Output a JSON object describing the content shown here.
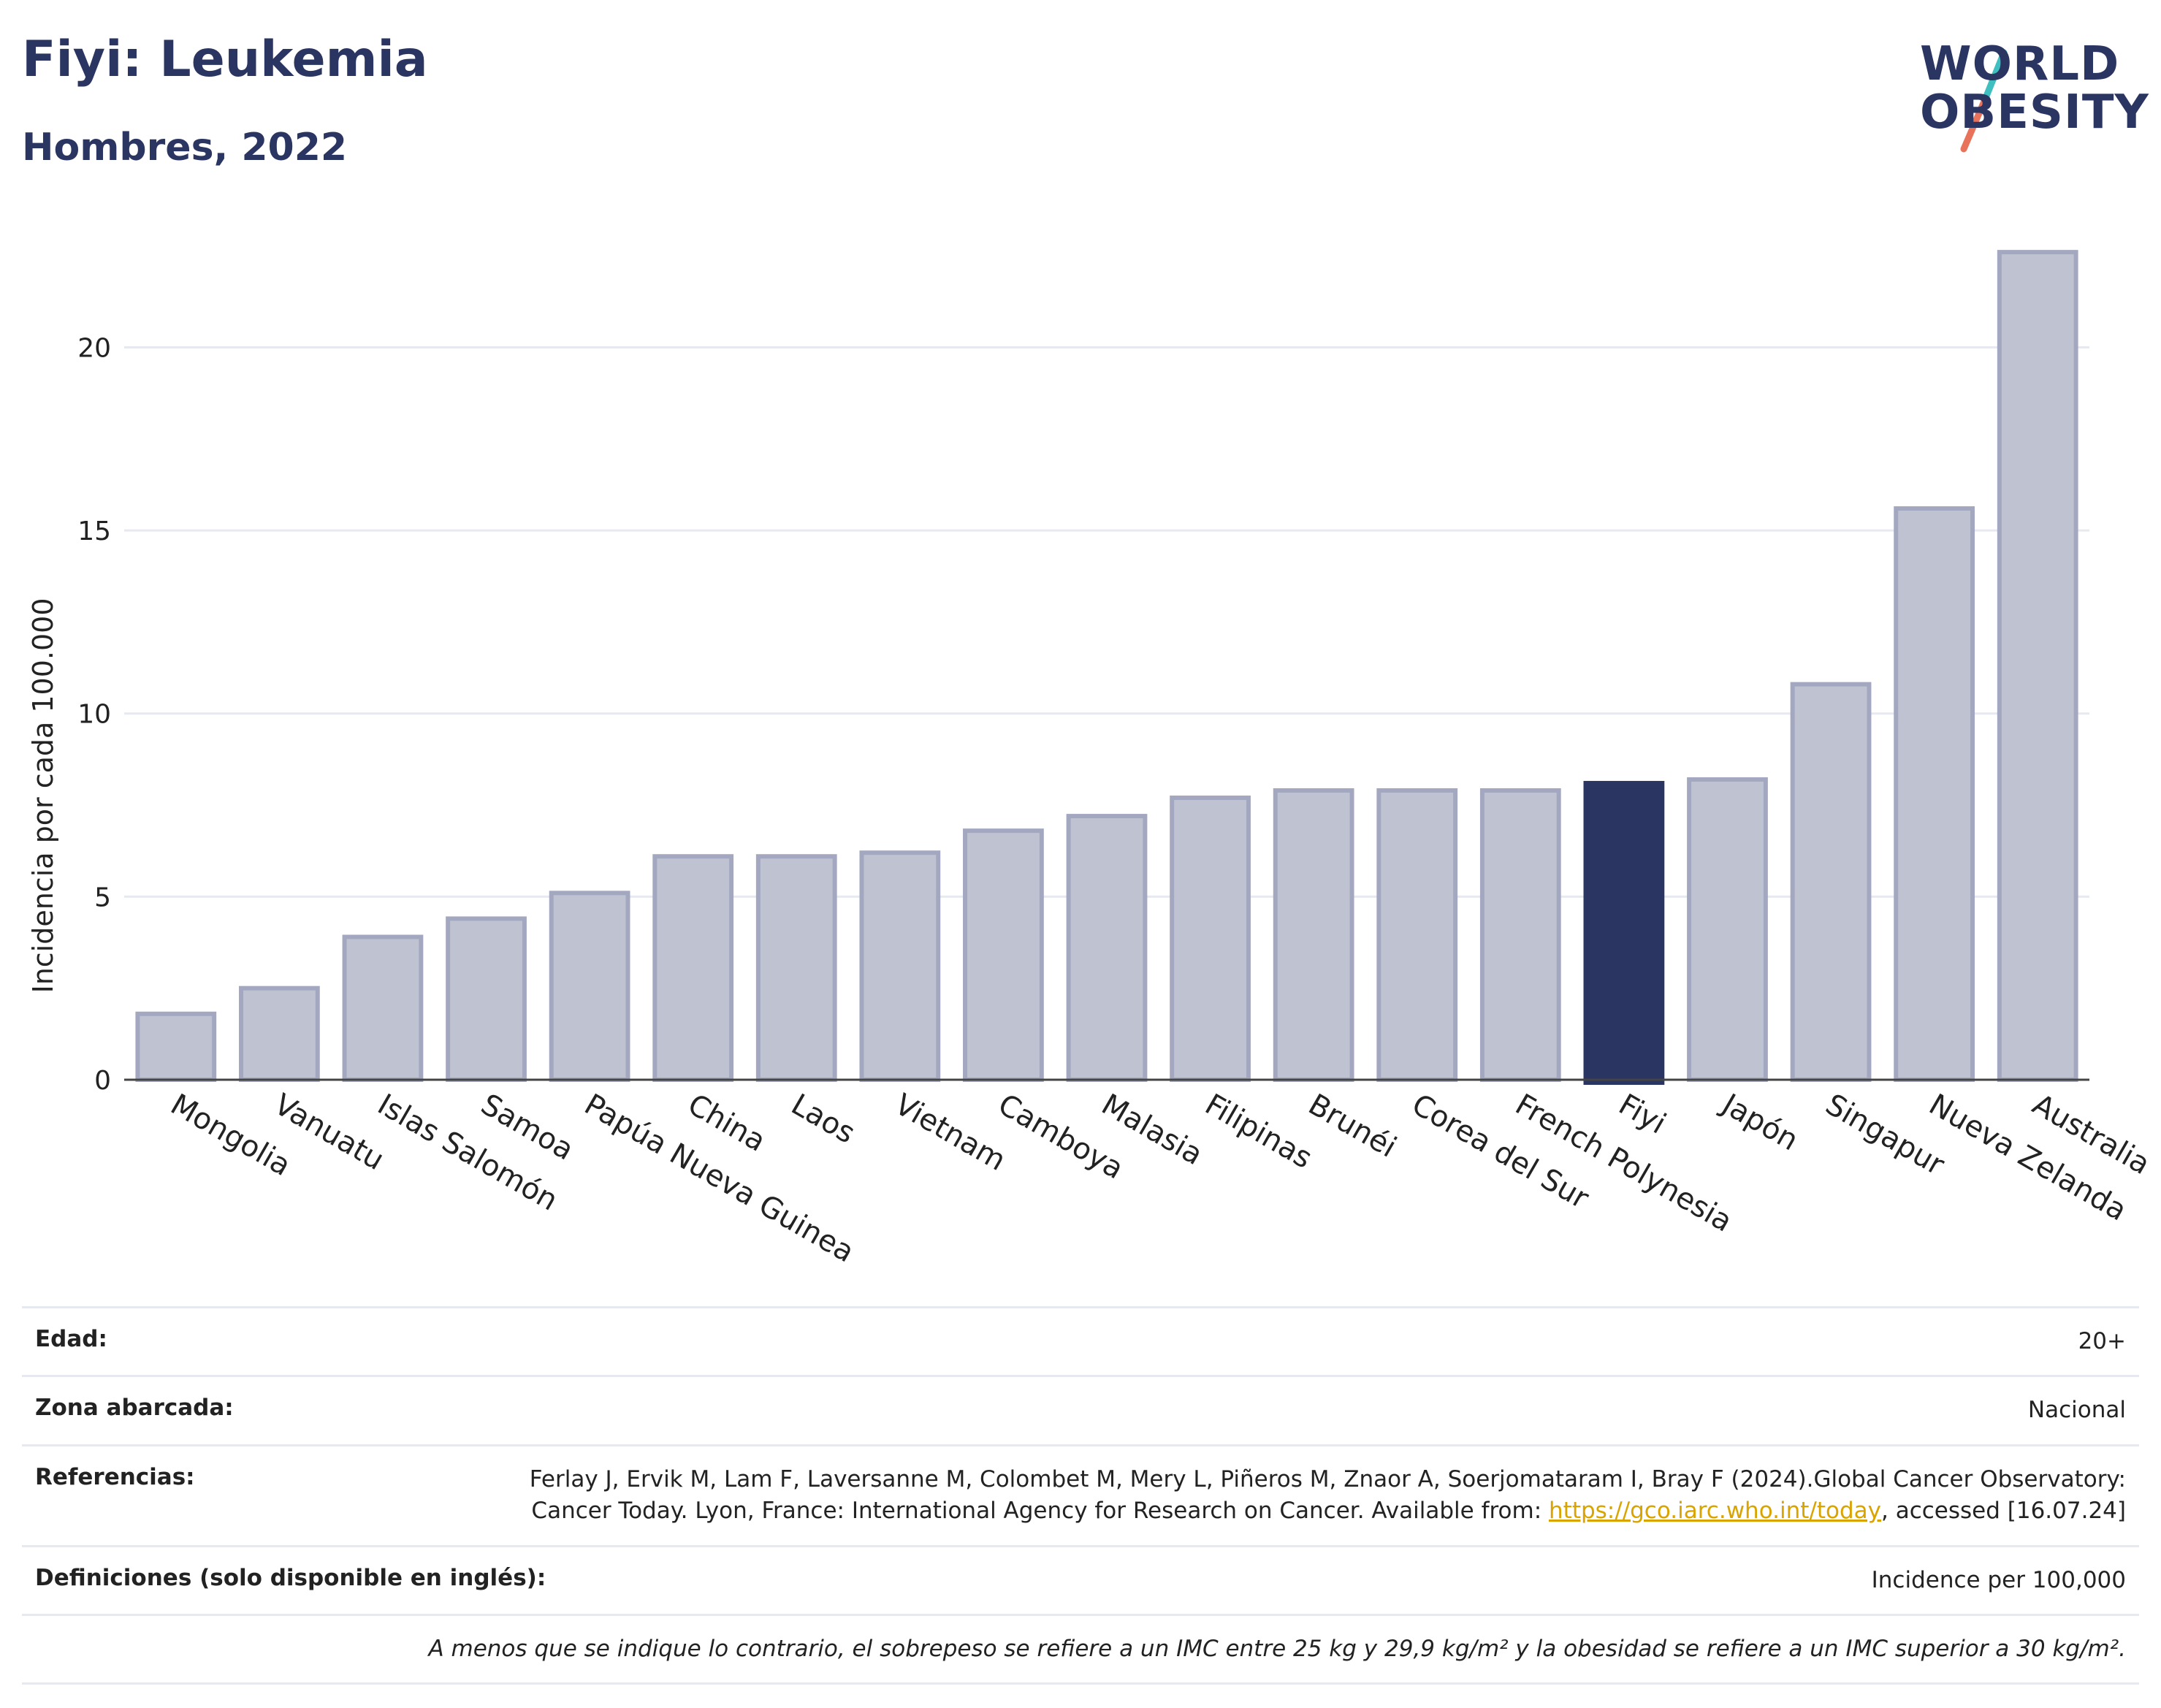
{
  "header": {
    "title": "Fiyi: Leukemia",
    "subtitle": "Hombres, 2022"
  },
  "logo": {
    "line1": "WORLD",
    "line2": "OBESITY",
    "colors": [
      "#2a3562",
      "#3fbfbf",
      "#e8735a"
    ]
  },
  "chart_data": {
    "type": "bar",
    "ylabel": "Incidencia por cada 100.000",
    "ylim": [
      0,
      23.5
    ],
    "yticks": [
      0,
      5,
      10,
      15,
      20
    ],
    "categories": [
      "Mongolia",
      "Vanuatu",
      "Islas Salomón",
      "Samoa",
      "Papúa Nueva Guinea",
      "China",
      "Laos",
      "Vietnam",
      "Camboya",
      "Malasia",
      "Filipinas",
      "Brunéi",
      "Corea del Sur",
      "French Polynesia",
      "Fiyi",
      "Japón",
      "Singapur",
      "Nueva Zelanda",
      "Australia"
    ],
    "values": [
      1.8,
      2.5,
      3.9,
      4.4,
      5.1,
      6.1,
      6.1,
      6.2,
      6.8,
      7.2,
      7.7,
      7.9,
      7.9,
      7.9,
      8.1,
      8.2,
      10.8,
      15.6,
      22.6
    ],
    "highlight": "Fiyi",
    "colors": {
      "bar": "#bfc3d1",
      "bar_border": "#a3a8c0",
      "highlight": "#2a3562",
      "grid": "#e6e9ef"
    }
  },
  "meta": {
    "age_label": "Edad:",
    "age_value": "20+",
    "zone_label": "Zona abarcada:",
    "zone_value": "Nacional",
    "ref_label": "Referencias:",
    "ref_text_before": "Ferlay J, Ervik M, Lam F, Laversanne M, Colombet M, Mery L, Piñeros M, Znaor A, Soerjomataram I, Bray F (2024).Global Cancer Observatory: Cancer Today. Lyon, France: International Agency for Research on Cancer. Available from: ",
    "ref_link": "https://gco.iarc.who.int/today",
    "ref_text_after": ", accessed [16.07.24]",
    "def_label": "Definiciones (solo disponible en inglés):",
    "def_value": "Incidence per 100,000",
    "note": "A menos que se indique lo contrario, el sobrepeso se refiere a un IMC entre 25 kg y 29,9 kg/m² y la obesidad se refiere a un IMC superior a 30 kg/m²."
  }
}
